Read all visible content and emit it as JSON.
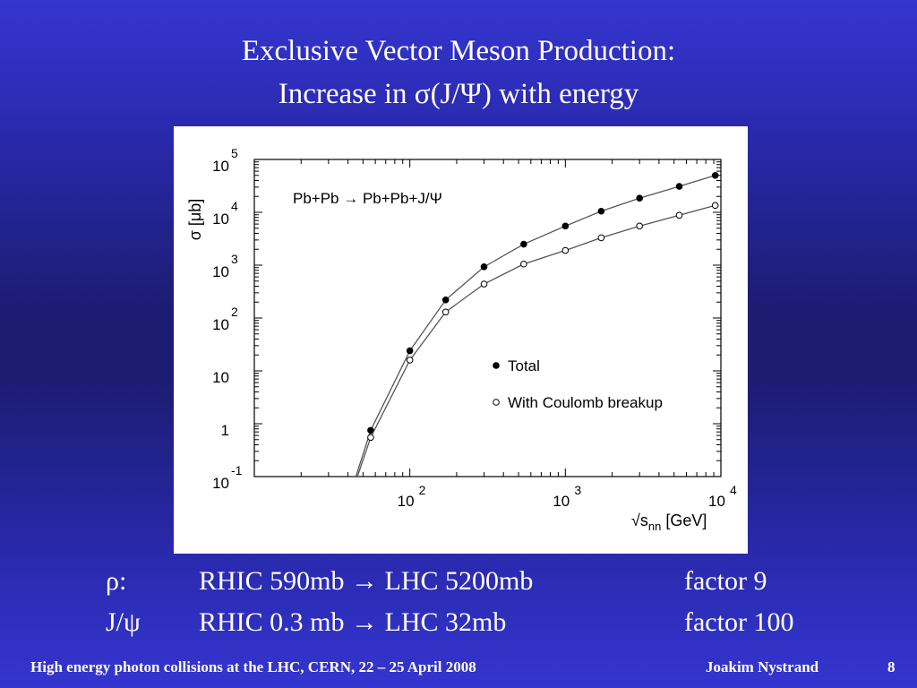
{
  "title_line1": "Exclusive Vector Meson Production:",
  "title_line2": "Increase in  σ(J/Ψ) with energy",
  "chart_data": {
    "type": "line",
    "title": "",
    "annotation": "Pb+Pb → Pb+Pb+J/Ψ",
    "ylabel": "σ [μb]",
    "xlabel": "√snn [GeV]",
    "xlabel_parts": {
      "root": "√s",
      "sub": "nn",
      "unit": " [GeV]"
    },
    "x_scale": "log",
    "y_scale": "log",
    "xlim": [
      10,
      10000
    ],
    "ylim": [
      0.1,
      100000
    ],
    "x_ticks": [
      {
        "base": "10",
        "exp": "2",
        "value": 100
      },
      {
        "base": "10",
        "exp": "3",
        "value": 1000
      },
      {
        "base": "10",
        "exp": "4",
        "value": 10000
      }
    ],
    "y_ticks": [
      {
        "base": "10",
        "exp": "-1",
        "value": 0.1
      },
      {
        "base": "1",
        "exp": "",
        "value": 1
      },
      {
        "base": "10",
        "exp": "",
        "value": 10
      },
      {
        "base": "10",
        "exp": "2",
        "value": 100
      },
      {
        "base": "10",
        "exp": "3",
        "value": 1000
      },
      {
        "base": "10",
        "exp": "4",
        "value": 10000
      },
      {
        "base": "10",
        "exp": "5",
        "value": 100000
      }
    ],
    "legend_position": "bottom-right",
    "grid": false,
    "series": [
      {
        "name": "Total",
        "marker": "filled",
        "x": [
          56,
          100,
          170,
          300,
          540,
          1000,
          1700,
          3000,
          5400,
          9200
        ],
        "y": [
          0.75,
          24,
          220,
          930,
          2500,
          5500,
          10500,
          18500,
          31000,
          50000
        ],
        "line_from": [
          45,
          0.1
        ]
      },
      {
        "name": "With Coulomb breakup",
        "marker": "open",
        "x": [
          56,
          100,
          170,
          300,
          540,
          1000,
          1700,
          3000,
          5400,
          9200
        ],
        "y": [
          0.55,
          16,
          130,
          440,
          1050,
          1900,
          3300,
          5500,
          8800,
          13500
        ],
        "line_from": [
          46,
          0.1
        ]
      }
    ]
  },
  "rows": [
    {
      "particle": "ρ:",
      "comparison": "RHIC 590mb  → LHC 5200mb",
      "factor": "factor 9"
    },
    {
      "particle": "J/ψ",
      "comparison": "RHIC 0.3 mb  → LHC 32mb",
      "factor": "factor 100"
    }
  ],
  "footer": {
    "conference": "High energy photon collisions at the LHC, CERN, 22 – 25 April 2008",
    "author": "Joakim Nystrand",
    "page": "8"
  }
}
